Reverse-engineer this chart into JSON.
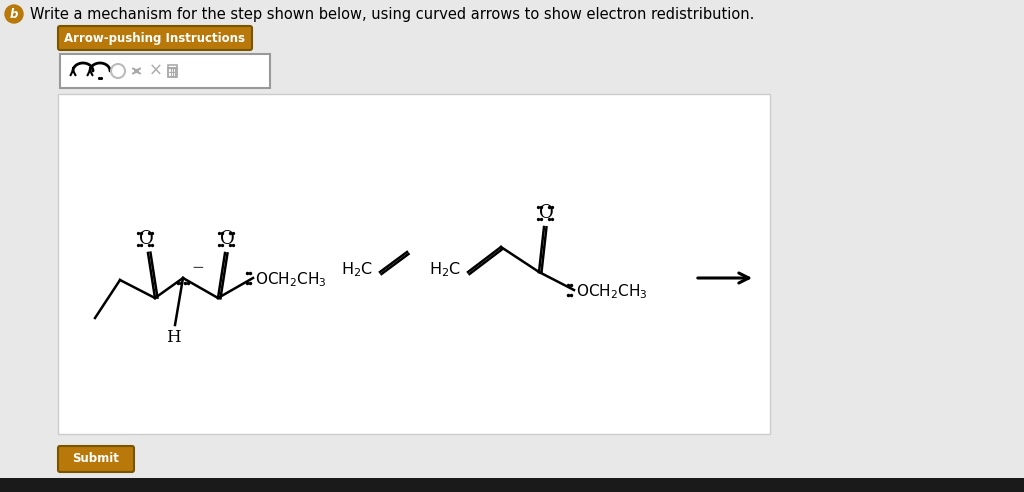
{
  "bg_color": "#e8e8e8",
  "panel_color": "#ffffff",
  "title_text": "Write a mechanism for the step shown below, using curved arrows to show electron redistribution.",
  "title_fontsize": 10.5,
  "b_circle_color": "#b8780a",
  "b_text_color": "#ffffff",
  "btn_color": "#b8780a",
  "btn_text": "Arrow-pushing Instructions",
  "btn2_text": "Submit",
  "line_color": "#000000",
  "gray_bg": "#e0e0e0",
  "toolbar_bg": "#ffffff"
}
